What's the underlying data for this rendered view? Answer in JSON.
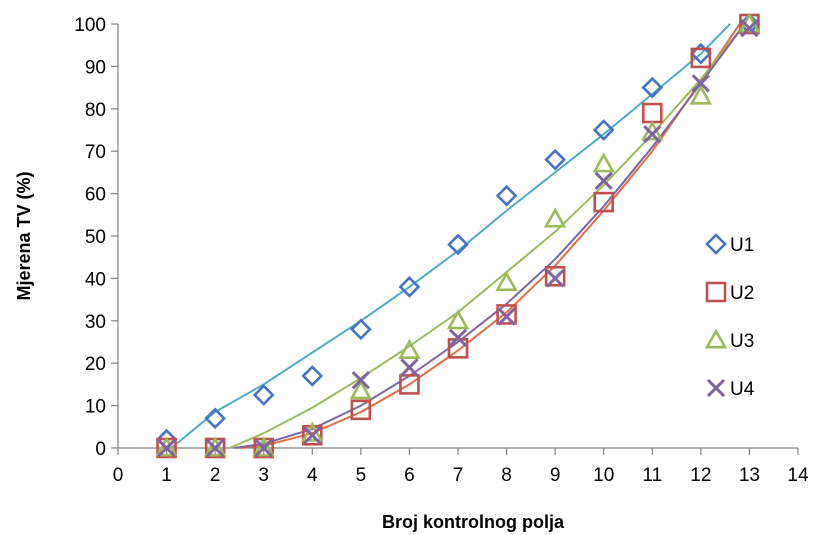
{
  "chart_data": {
    "type": "scatter",
    "xlabel": "Broj kontrolnog polja",
    "ylabel": "Mjerena TV (%)",
    "xlim": [
      0,
      14
    ],
    "ylim": [
      0,
      100
    ],
    "x_ticks": [
      "0",
      "1",
      "2",
      "3",
      "4",
      "5",
      "6",
      "7",
      "8",
      "9",
      "10",
      "11",
      "12",
      "13",
      "14"
    ],
    "y_ticks": [
      "0",
      "10",
      "20",
      "30",
      "40",
      "50",
      "60",
      "70",
      "80",
      "90",
      "100"
    ],
    "grid": false,
    "legend_position": "right",
    "series": [
      {
        "name": "U1",
        "marker": "diamond",
        "color": "#4472C4",
        "trend_color": "#4BACC6",
        "x": [
          1,
          2,
          3,
          4,
          5,
          6,
          7,
          8,
          9,
          10,
          11,
          12,
          13
        ],
        "y": [
          2,
          7,
          12.5,
          17,
          28,
          38,
          48,
          59.5,
          68,
          75,
          85,
          93,
          100
        ],
        "trend": [
          [
            1.1,
            0
          ],
          [
            2,
            8.5
          ],
          [
            3,
            15
          ],
          [
            4,
            22.5
          ],
          [
            5,
            30
          ],
          [
            6,
            38
          ],
          [
            7,
            46.5
          ],
          [
            8,
            56
          ],
          [
            9,
            65
          ],
          [
            10,
            74
          ],
          [
            11,
            83.5
          ],
          [
            12,
            93
          ],
          [
            12.6,
            100
          ]
        ]
      },
      {
        "name": "U2",
        "marker": "square",
        "color": "#C0504D",
        "trend_color": "#E36C40",
        "x": [
          1,
          2,
          3,
          4,
          5,
          6,
          7,
          8,
          9,
          10,
          11,
          12,
          13
        ],
        "y": [
          0,
          0,
          0,
          3,
          9,
          15,
          23.5,
          31.5,
          40.5,
          58,
          79,
          92,
          100
        ],
        "trend": [
          [
            2.5,
            0
          ],
          [
            3,
            0.5
          ],
          [
            4,
            3.5
          ],
          [
            5,
            8.5
          ],
          [
            6,
            15
          ],
          [
            7,
            23
          ],
          [
            8,
            32
          ],
          [
            9,
            43
          ],
          [
            10,
            56
          ],
          [
            11,
            70
          ],
          [
            12,
            86.5
          ],
          [
            12.8,
            100
          ]
        ]
      },
      {
        "name": "U3",
        "marker": "triangle",
        "color": "#9BBB59",
        "trend_color": "#9BBB59",
        "x": [
          1,
          2,
          3,
          4,
          5,
          6,
          7,
          8,
          9,
          10,
          11,
          12,
          13
        ],
        "y": [
          0,
          0,
          0,
          3.5,
          13.5,
          23,
          30,
          39,
          54,
          67,
          74.5,
          83,
          100
        ],
        "trend": [
          [
            2.3,
            0
          ],
          [
            3,
            3.5
          ],
          [
            4,
            9.5
          ],
          [
            5,
            16.5
          ],
          [
            6,
            24
          ],
          [
            7,
            32
          ],
          [
            8,
            41.5
          ],
          [
            9,
            51
          ],
          [
            10,
            62
          ],
          [
            11,
            74
          ],
          [
            12,
            87
          ],
          [
            12.9,
            100
          ]
        ]
      },
      {
        "name": "U4",
        "marker": "x",
        "color": "#8064A2",
        "trend_color": "#8064A2",
        "x": [
          1,
          2,
          3,
          4,
          5,
          6,
          7,
          8,
          9,
          10,
          11,
          12,
          13
        ],
        "y": [
          0,
          0,
          0,
          3,
          16,
          19,
          26,
          31,
          40,
          63,
          74,
          86,
          99
        ],
        "trend": [
          [
            2.4,
            0
          ],
          [
            3,
            1
          ],
          [
            4,
            4.5
          ],
          [
            5,
            10
          ],
          [
            6,
            17
          ],
          [
            7,
            25
          ],
          [
            8,
            34
          ],
          [
            9,
            44.5
          ],
          [
            10,
            57
          ],
          [
            11,
            71
          ],
          [
            12,
            86
          ],
          [
            12.9,
            100
          ]
        ]
      }
    ]
  }
}
